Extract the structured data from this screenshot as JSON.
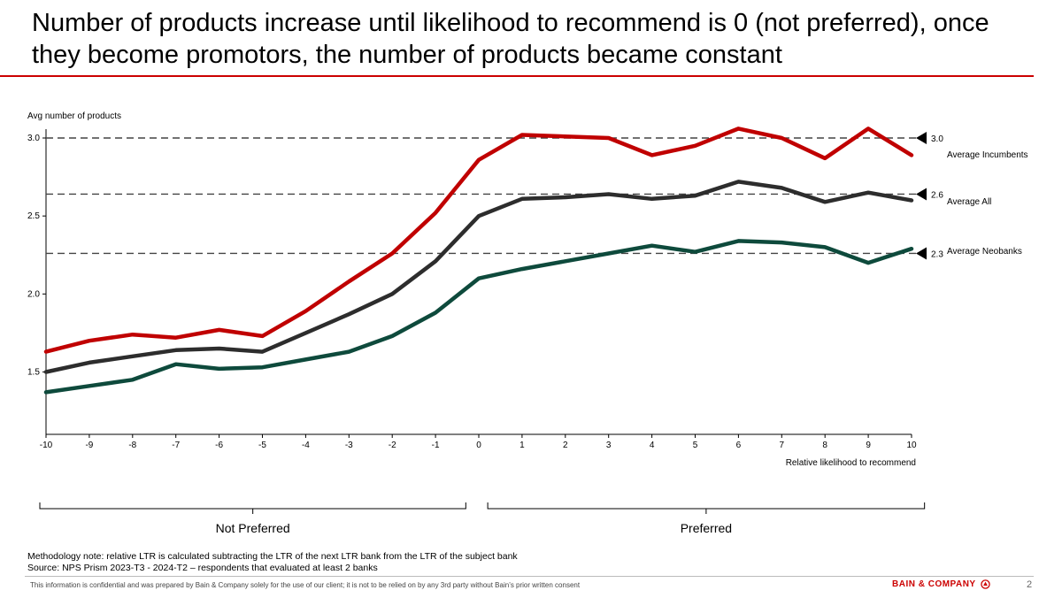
{
  "title": "Number of products increase until likelihood to recommend is 0 (not preferred), once they become promotors, the number of products became constant",
  "colors": {
    "accent": "#cc0000",
    "incumbents": "#c00000",
    "all": "#2d2d2d",
    "neobanks": "#0e4a3c",
    "reference": "#444444"
  },
  "chart_data": {
    "type": "line",
    "ylabel": "Avg number of products",
    "xlabel": "Relative likelihood to recommend",
    "ylim": [
      1.1,
      3.0
    ],
    "yticks": [
      3.0,
      2.5,
      2.0,
      1.5
    ],
    "ytick_labels": [
      "3.0",
      "2.5",
      "2.0",
      "1.5"
    ],
    "x": [
      -10,
      -9,
      -8,
      -7,
      -6,
      -5,
      -4,
      -3,
      -2,
      -1,
      0,
      1,
      2,
      3,
      4,
      5,
      6,
      7,
      8,
      9,
      10
    ],
    "x_labels": [
      "-10",
      "-9",
      "-8",
      "-7",
      "-6",
      "-5",
      "-4",
      "-3",
      "-2",
      "-1",
      "0",
      "1",
      "2",
      "3",
      "4",
      "5",
      "6",
      "7",
      "8",
      "9",
      "10"
    ],
    "series": [
      {
        "name": "Incumbents",
        "color": "#c00000",
        "values": [
          1.63,
          1.7,
          1.74,
          1.72,
          1.77,
          1.73,
          1.89,
          2.08,
          2.26,
          2.52,
          2.86,
          3.02,
          3.01,
          3.0,
          2.89,
          2.95,
          3.06,
          3.0,
          2.87,
          3.06,
          2.89
        ]
      },
      {
        "name": "All",
        "color": "#2d2d2d",
        "values": [
          1.5,
          1.56,
          1.6,
          1.64,
          1.65,
          1.63,
          1.75,
          1.87,
          2.0,
          2.21,
          2.5,
          2.61,
          2.62,
          2.64,
          2.61,
          2.63,
          2.72,
          2.68,
          2.59,
          2.65,
          2.6
        ]
      },
      {
        "name": "Neobanks",
        "color": "#0e4a3c",
        "values": [
          1.37,
          1.41,
          1.45,
          1.55,
          1.52,
          1.53,
          1.58,
          1.63,
          1.73,
          1.88,
          2.1,
          2.16,
          2.21,
          2.26,
          2.31,
          2.27,
          2.34,
          2.33,
          2.3,
          2.2,
          2.29
        ]
      }
    ],
    "reference_lines": [
      {
        "value": 3.0,
        "label": "3.0",
        "name": "Average Incumbents"
      },
      {
        "value": 2.64,
        "label": "2.6",
        "name": "Average All"
      },
      {
        "value": 2.26,
        "label": "2.3",
        "name": "Average Neobanks"
      }
    ]
  },
  "brackets": [
    {
      "label": "Not Preferred",
      "from": -10,
      "to": -0.3
    },
    {
      "label": "Preferred",
      "from": 0.35,
      "to": 10.3
    }
  ],
  "notes": {
    "methodology": "Methodology note: relative LTR is calculated subtracting the LTR of the next LTR bank from the LTR of the subject bank",
    "source": "Source: NPS Prism 2023-T3 - 2024-T2 – respondents that evaluated at least 2 banks"
  },
  "footer": {
    "disclaimer": "This information is confidential and was prepared by Bain & Company solely for the use of our client; it is not to be relied on by any 3rd party without Bain’s prior written consent",
    "brand": "BAIN & COMPANY",
    "page": "2"
  }
}
